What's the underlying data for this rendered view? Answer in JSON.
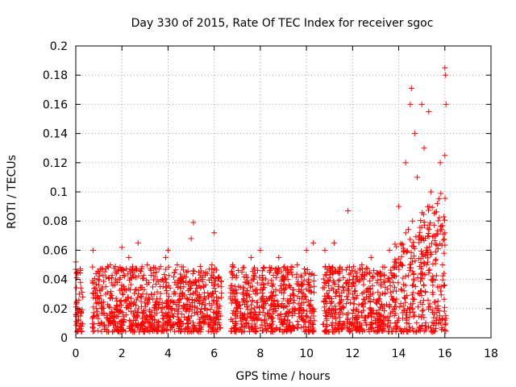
{
  "chart_data": {
    "type": "scatter",
    "title": "Day 330 of 2015, Rate Of TEC Index for receiver sgoc",
    "xlabel": "GPS time / hours",
    "ylabel": "ROTI / TECUs",
    "xlim": [
      0,
      18
    ],
    "ylim": [
      0,
      0.2
    ],
    "grid": true,
    "marker": "+",
    "color": "#ff0000",
    "x_ticks": [
      0,
      2,
      4,
      6,
      8,
      10,
      12,
      14,
      16,
      18
    ],
    "x_tick_labels": [
      "0",
      "2",
      "4",
      "6",
      "8",
      "10",
      "12",
      "14",
      "16",
      "18"
    ],
    "y_ticks": [
      0,
      0.02,
      0.04,
      0.06,
      0.08,
      0.1,
      0.12,
      0.14,
      0.16,
      0.18,
      0.2
    ],
    "y_tick_labels": [
      "0",
      "0.02",
      "0.04",
      "0.06",
      "0.08",
      "0.1",
      "0.12",
      "0.14",
      "0.16",
      "0.18",
      "0.2"
    ],
    "series": [
      {
        "name": "ROTI",
        "points": [
          [
            0.0,
            0.052
          ],
          [
            0.05,
            0.045
          ],
          [
            0.08,
            0.02
          ],
          [
            0.1,
            0.012
          ],
          [
            0.15,
            0.03
          ],
          [
            0.2,
            0.038
          ],
          [
            0.25,
            0.008
          ],
          [
            0.3,
            0.028
          ],
          [
            0.75,
            0.06
          ],
          [
            0.9,
            0.02
          ],
          [
            1.0,
            0.045
          ],
          [
            1.1,
            0.01
          ],
          [
            1.3,
            0.035
          ],
          [
            1.5,
            0.05
          ],
          [
            1.7,
            0.015
          ],
          [
            1.9,
            0.04
          ],
          [
            2.0,
            0.062
          ],
          [
            2.1,
            0.025
          ],
          [
            2.3,
            0.055
          ],
          [
            2.5,
            0.012
          ],
          [
            2.7,
            0.065
          ],
          [
            2.9,
            0.03
          ],
          [
            3.1,
            0.05
          ],
          [
            3.3,
            0.008
          ],
          [
            3.5,
            0.045
          ],
          [
            3.7,
            0.02
          ],
          [
            3.9,
            0.055
          ],
          [
            4.0,
            0.06
          ],
          [
            4.2,
            0.015
          ],
          [
            4.4,
            0.05
          ],
          [
            4.6,
            0.03
          ],
          [
            4.8,
            0.045
          ],
          [
            5.0,
            0.068
          ],
          [
            5.1,
            0.079
          ],
          [
            5.3,
            0.025
          ],
          [
            5.5,
            0.04
          ],
          [
            5.7,
            0.015
          ],
          [
            5.9,
            0.05
          ],
          [
            6.0,
            0.072
          ],
          [
            6.2,
            0.02
          ],
          [
            6.3,
            0.035
          ],
          [
            6.8,
            0.05
          ],
          [
            7.0,
            0.02
          ],
          [
            7.2,
            0.045
          ],
          [
            7.4,
            0.01
          ],
          [
            7.6,
            0.055
          ],
          [
            7.8,
            0.03
          ],
          [
            8.0,
            0.06
          ],
          [
            8.2,
            0.015
          ],
          [
            8.4,
            0.045
          ],
          [
            8.6,
            0.025
          ],
          [
            8.8,
            0.055
          ],
          [
            9.0,
            0.01
          ],
          [
            9.2,
            0.04
          ],
          [
            9.4,
            0.03
          ],
          [
            9.6,
            0.05
          ],
          [
            9.8,
            0.015
          ],
          [
            10.0,
            0.06
          ],
          [
            10.2,
            0.005
          ],
          [
            10.3,
            0.065
          ],
          [
            10.8,
            0.06
          ],
          [
            11.0,
            0.02
          ],
          [
            11.2,
            0.065
          ],
          [
            11.4,
            0.035
          ],
          [
            11.6,
            0.01
          ],
          [
            11.8,
            0.087
          ],
          [
            12.0,
            0.04
          ],
          [
            12.2,
            0.015
          ],
          [
            12.4,
            0.05
          ],
          [
            12.6,
            0.028
          ],
          [
            12.8,
            0.055
          ],
          [
            13.0,
            0.01
          ],
          [
            13.2,
            0.045
          ],
          [
            13.4,
            0.03
          ],
          [
            13.6,
            0.06
          ],
          [
            13.8,
            0.02
          ],
          [
            14.0,
            0.09
          ],
          [
            14.1,
            0.05
          ],
          [
            14.3,
            0.12
          ],
          [
            14.5,
            0.16
          ],
          [
            14.55,
            0.171
          ],
          [
            14.6,
            0.08
          ],
          [
            14.7,
            0.14
          ],
          [
            14.8,
            0.11
          ],
          [
            14.9,
            0.03
          ],
          [
            15.0,
            0.16
          ],
          [
            15.1,
            0.13
          ],
          [
            15.2,
            0.06
          ],
          [
            15.3,
            0.155
          ],
          [
            15.4,
            0.1
          ],
          [
            15.5,
            0.04
          ],
          [
            15.6,
            0.07
          ],
          [
            15.7,
            0.02
          ],
          [
            15.8,
            0.12
          ],
          [
            15.9,
            0.05
          ],
          [
            16.0,
            0.185
          ],
          [
            16.02,
            0.18
          ],
          [
            16.05,
            0.16
          ],
          [
            16.0,
            0.125
          ],
          [
            16.03,
            0.01
          ]
        ]
      }
    ]
  }
}
